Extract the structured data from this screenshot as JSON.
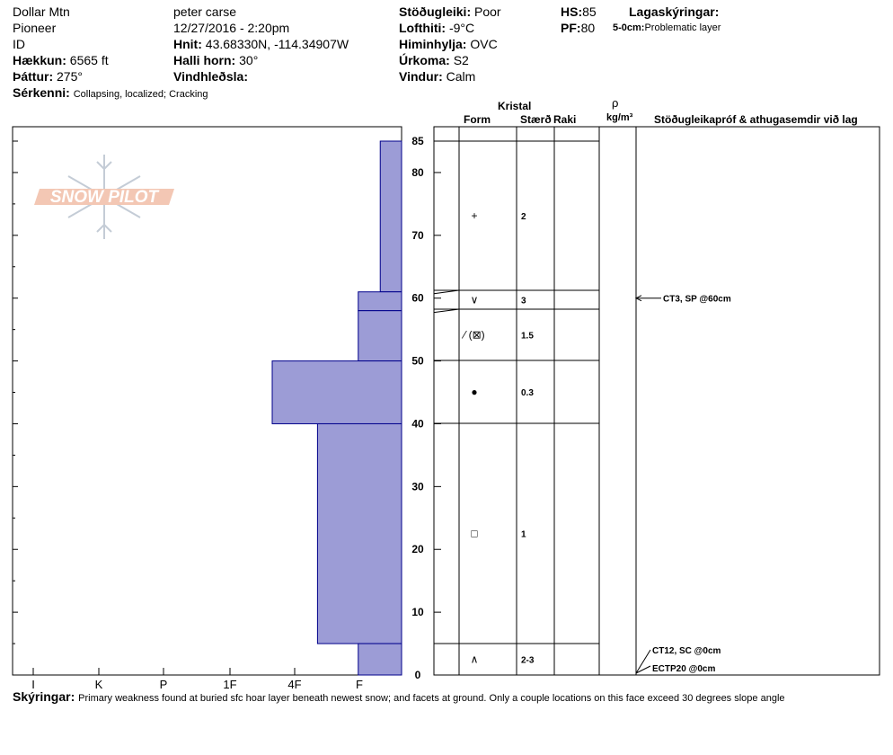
{
  "header": {
    "location": "Dollar Mtn",
    "observer": "peter carse",
    "region": "Pioneer",
    "datetime": "12/27/2016 - 2:20pm",
    "id_label": "ID",
    "coords_label": "Hnit:",
    "coords_value": "43.68330N, -114.34907W",
    "elevation_label": "Hækkun:",
    "elevation_value": "6565 ft",
    "slope_label": "Halli horn:",
    "slope_value": "30°",
    "aspect_label": "Þáttur:",
    "aspect_value": "275°",
    "wind_loading_label": "Vindhleðsla:",
    "wind_loading_value": "",
    "features_label": "Sérkenni:",
    "features_value": "Collapsing, localized;  Cracking",
    "stability_label": "Stöðugleiki:",
    "stability_value": "Poor",
    "air_temp_label": "Lofthiti:",
    "air_temp_value": "-9°C",
    "sky_label": "Himinhylja:",
    "sky_value": "OVC",
    "precip_label": "Úrkoma:",
    "precip_value": "S2",
    "wind_label": "Vindur:",
    "wind_value": "Calm",
    "hs_label": "HS:",
    "hs_value": "85",
    "pf_label": "PF:",
    "pf_value": "80",
    "layer_notes_label": "Lagaskýringar:",
    "layer_note_range": "5-0cm:",
    "layer_note_text": "Problematic layer"
  },
  "columns": {
    "crystal": "Kristal",
    "form": "Form",
    "size": "Stærð",
    "moisture": "Raki",
    "density_symbol": "ρ",
    "density_unit": "kg/m³",
    "tests": "Stöðugleikapróf & athugasemdir við lag"
  },
  "footer": {
    "label": "Skýringar:",
    "text": "Primary weakness found at buried sfc hoar layer beneath newest snow; and facets at ground. Only a couple locations on this face exceed 30 degrees slope angle"
  },
  "logo_text": "SNOW PILOT",
  "colors": {
    "hardness_fill": "#9c9cd6",
    "hardness_stroke": "#00008b"
  },
  "chart_data": {
    "type": "bar",
    "hardness_scale": [
      "I",
      "K",
      "P",
      "1F",
      "4F",
      "F"
    ],
    "depth_ticks": [
      0,
      10,
      20,
      30,
      40,
      50,
      60,
      70,
      80,
      85
    ],
    "ylim": [
      0,
      85
    ],
    "layers": [
      {
        "top": 85,
        "bottom": 61,
        "hardness": 0.33,
        "form": "+",
        "size": "2"
      },
      {
        "top": 61,
        "bottom": 58,
        "hardness": 0.67,
        "form": "∨",
        "size": "3"
      },
      {
        "top": 58,
        "bottom": 50,
        "hardness": 0.67,
        "form": "⁄ (⊠)",
        "size": "1.5"
      },
      {
        "top": 50,
        "bottom": 40,
        "hardness": 2.0,
        "form": "●",
        "size": "0.3"
      },
      {
        "top": 40,
        "bottom": 5,
        "hardness": 1.3,
        "form": "□",
        "size": "1"
      },
      {
        "top": 5,
        "bottom": 0,
        "hardness": 0.67,
        "form": "∧",
        "size": "2-3"
      }
    ],
    "tests": [
      {
        "depth": 60,
        "text": "CT3, SP @60cm"
      },
      {
        "depth": 0,
        "text": "CT12, SC @0cm"
      },
      {
        "depth": 0,
        "text": "ECTP20 @0cm"
      }
    ]
  }
}
